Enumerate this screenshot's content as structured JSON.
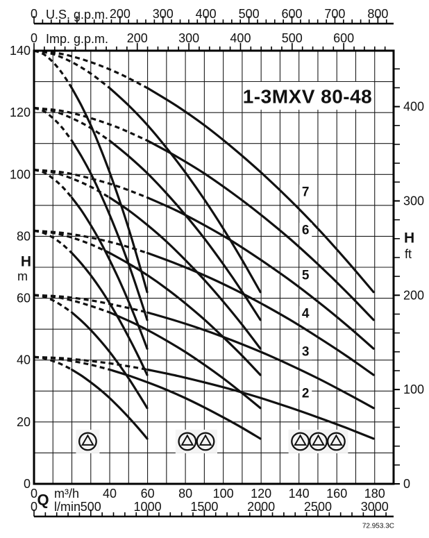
{
  "drawing_code": "72.953.3C",
  "chart_data": {
    "type": "line",
    "title": "1-3MXV 80-48",
    "grid": {
      "x_step_m3h": 10,
      "y_step_m": 10,
      "q_max_m3h": 190,
      "head_max_m": 140
    },
    "axes": {
      "us_gpm": {
        "label": "U.S. g.p.m.",
        "labels": [
          0,
          200,
          300,
          400,
          500,
          600,
          700,
          800
        ],
        "minor_step": 20,
        "max": 840,
        "m3h_per_unit": 0.22712
      },
      "imp_gpm": {
        "label": "Imp. g.p.m.",
        "labels": [
          0,
          200,
          300,
          400,
          500,
          600
        ],
        "minor_step": 20,
        "max": 680,
        "m3h_per_unit": 0.27276
      },
      "m3h": {
        "label": "m³/h",
        "labels": [
          0,
          40,
          60,
          80,
          100,
          120,
          140,
          160,
          180
        ]
      },
      "lmin": {
        "label": "l/min",
        "labels": [
          0,
          500,
          1000,
          1500,
          2000,
          2500,
          3000
        ],
        "minor_step": 100,
        "max": 3100,
        "m3h_per_unit": 0.06
      },
      "left_head_m": {
        "symbol": "H",
        "unit": "m",
        "labels": [
          0,
          20,
          40,
          60,
          80,
          100,
          120,
          140
        ]
      },
      "right_head_ft": {
        "symbol": "H",
        "unit": "ft",
        "labels": [
          0,
          100,
          200,
          300,
          400
        ],
        "minor_step": 20,
        "max": 440,
        "m_per_unit": 0.3048
      },
      "flow_symbol": "Q"
    },
    "pump_counts": [
      1,
      2,
      3
    ],
    "dashed_until_per_pump_flow_m3h": 20,
    "per_pump_flow_m3h": [
      0,
      5,
      10,
      15,
      20,
      25,
      30,
      35,
      40,
      45,
      50,
      55,
      59.8
    ],
    "families": [
      {
        "label": "7",
        "heads_m": [
          140.0,
          138.9,
          136.3,
          132.6,
          127.9,
          122.3,
          115.9,
          108.6,
          100.6,
          91.9,
          82.5,
          72.3,
          62.0
        ],
        "label_at": {
          "q_m3h": 143.5,
          "head_m": 94.2
        }
      },
      {
        "label": "6",
        "heads_m": [
          121.5,
          120.5,
          118.2,
          115.0,
          110.9,
          105.9,
          100.3,
          93.9,
          86.9,
          79.3,
          71.0,
          62.1,
          53.0
        ],
        "label_at": {
          "q_m3h": 143.5,
          "head_m": 81.9
        }
      },
      {
        "label": "5",
        "heads_m": [
          101.5,
          100.7,
          98.7,
          96.0,
          92.5,
          88.4,
          83.6,
          78.3,
          72.3,
          65.9,
          58.9,
          51.4,
          43.7
        ],
        "label_at": {
          "q_m3h": 143.5,
          "head_m": 67.3
        }
      },
      {
        "label": "4",
        "heads_m": [
          81.8,
          81.1,
          79.6,
          77.4,
          74.6,
          71.2,
          67.4,
          63.1,
          58.3,
          53.1,
          47.4,
          41.4,
          35.2
        ],
        "label_at": {
          "q_m3h": 143.5,
          "head_m": 55.0
        }
      },
      {
        "label": "3",
        "heads_m": [
          61.0,
          60.5,
          59.3,
          57.5,
          55.4,
          52.7,
          49.7,
          46.3,
          42.6,
          38.5,
          34.1,
          29.3,
          24.5
        ],
        "label_at": {
          "q_m3h": 143.5,
          "head_m": 42.6
        }
      },
      {
        "label": "2",
        "heads_m": [
          41.0,
          40.6,
          39.7,
          38.5,
          36.9,
          35.0,
          32.8,
          30.4,
          27.7,
          24.7,
          21.5,
          18.1,
          14.6
        ],
        "label_at": {
          "q_m3h": 143.5,
          "head_m": 29.2
        }
      }
    ],
    "pump_group_markers": [
      {
        "pumps": 1,
        "q_centers_m3h": [
          28.4
        ],
        "head_m": 13.7
      },
      {
        "pumps": 2,
        "q_centers_m3h": [
          81.0,
          90.6
        ],
        "head_m": 13.7
      },
      {
        "pumps": 3,
        "q_centers_m3h": [
          140.7,
          150.2,
          159.7
        ],
        "head_m": 13.7
      }
    ],
    "colors": {
      "curve": "#111111",
      "grid": "#1a1a1a",
      "axis": "#000000",
      "patch": "#f4f4f4"
    }
  }
}
